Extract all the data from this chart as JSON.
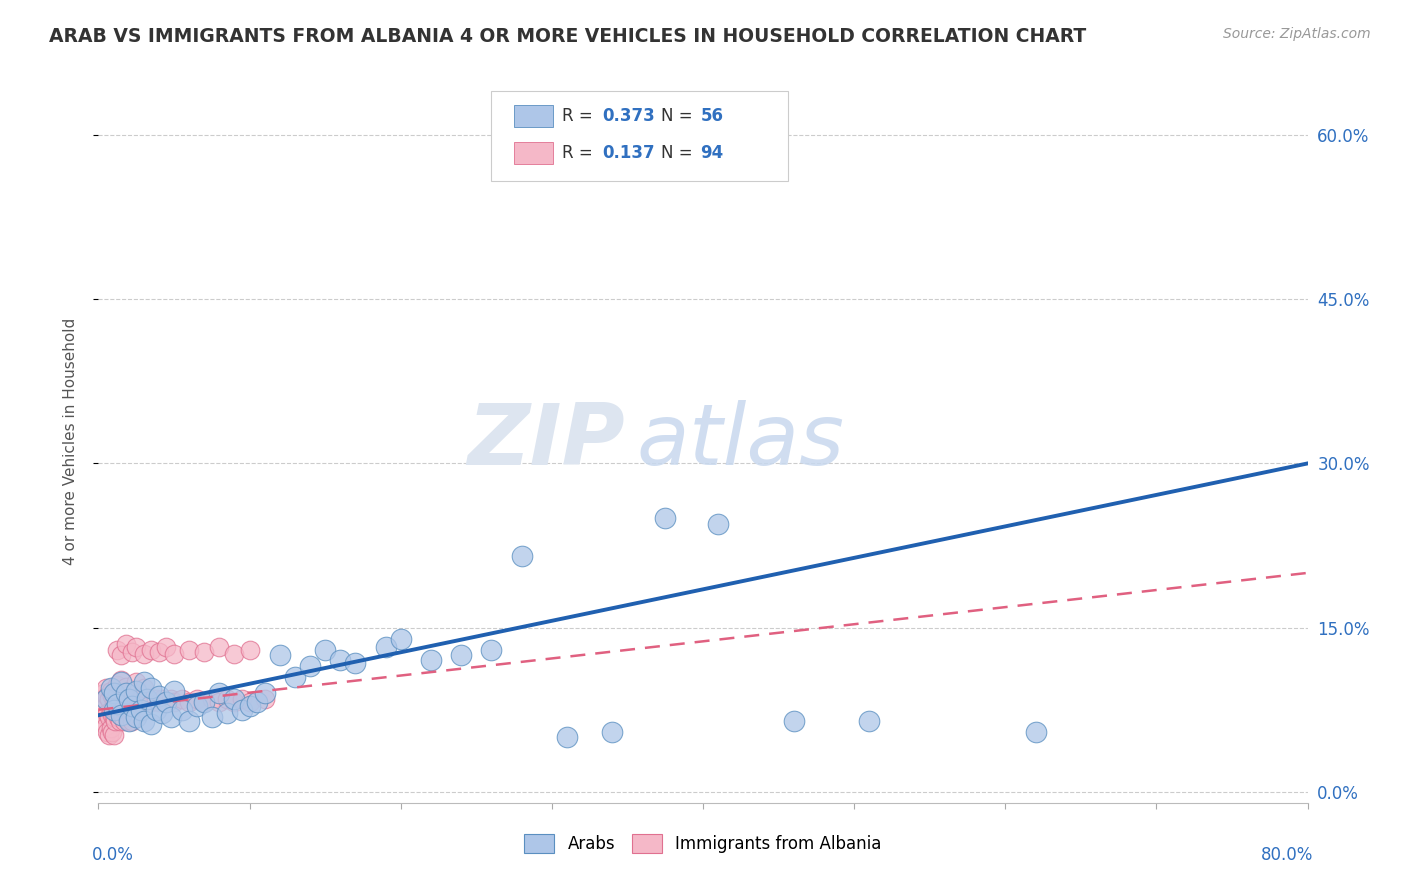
{
  "title": "ARAB VS IMMIGRANTS FROM ALBANIA 4 OR MORE VEHICLES IN HOUSEHOLD CORRELATION CHART",
  "source": "Source: ZipAtlas.com",
  "ylabel": "4 or more Vehicles in Household",
  "yticks": [
    "0.0%",
    "15.0%",
    "30.0%",
    "45.0%",
    "60.0%"
  ],
  "ytick_vals": [
    0.0,
    0.15,
    0.3,
    0.45,
    0.6
  ],
  "xlim": [
    0.0,
    0.8
  ],
  "ylim": [
    -0.01,
    0.65
  ],
  "legend_r1": "0.373",
  "legend_n1": "56",
  "legend_r2": "0.137",
  "legend_n2": "94",
  "arab_color": "#aec6e8",
  "albania_color": "#f5b8c8",
  "arab_edge_color": "#5a8fc0",
  "albania_edge_color": "#e07090",
  "arab_line_color": "#2060b0",
  "albania_line_color": "#e06080",
  "text_color_blue": "#3070c0",
  "watermark_zip": "ZIP",
  "watermark_atlas": "atlas",
  "arab_scatter_x": [
    0.005,
    0.008,
    0.01,
    0.01,
    0.012,
    0.015,
    0.015,
    0.018,
    0.02,
    0.02,
    0.022,
    0.025,
    0.025,
    0.028,
    0.03,
    0.03,
    0.032,
    0.035,
    0.035,
    0.038,
    0.04,
    0.042,
    0.045,
    0.048,
    0.05,
    0.055,
    0.06,
    0.065,
    0.07,
    0.075,
    0.08,
    0.085,
    0.09,
    0.095,
    0.1,
    0.105,
    0.11,
    0.12,
    0.13,
    0.14,
    0.15,
    0.16,
    0.17,
    0.19,
    0.2,
    0.22,
    0.24,
    0.26,
    0.28,
    0.31,
    0.34,
    0.375,
    0.41,
    0.46,
    0.51,
    0.62
  ],
  "arab_scatter_y": [
    0.085,
    0.095,
    0.09,
    0.075,
    0.08,
    0.1,
    0.07,
    0.09,
    0.085,
    0.065,
    0.078,
    0.092,
    0.068,
    0.075,
    0.1,
    0.065,
    0.085,
    0.095,
    0.062,
    0.075,
    0.088,
    0.072,
    0.082,
    0.068,
    0.092,
    0.075,
    0.065,
    0.078,
    0.082,
    0.068,
    0.09,
    0.072,
    0.085,
    0.075,
    0.078,
    0.082,
    0.09,
    0.125,
    0.105,
    0.115,
    0.13,
    0.12,
    0.118,
    0.132,
    0.14,
    0.12,
    0.125,
    0.13,
    0.215,
    0.05,
    0.055,
    0.25,
    0.245,
    0.065,
    0.065,
    0.055
  ],
  "albania_scatter_x": [
    0.002,
    0.003,
    0.003,
    0.004,
    0.004,
    0.005,
    0.005,
    0.005,
    0.006,
    0.006,
    0.006,
    0.007,
    0.007,
    0.007,
    0.008,
    0.008,
    0.008,
    0.009,
    0.009,
    0.009,
    0.01,
    0.01,
    0.01,
    0.011,
    0.011,
    0.012,
    0.012,
    0.013,
    0.013,
    0.014,
    0.014,
    0.015,
    0.015,
    0.016,
    0.016,
    0.017,
    0.017,
    0.018,
    0.018,
    0.019,
    0.019,
    0.02,
    0.02,
    0.021,
    0.021,
    0.022,
    0.022,
    0.023,
    0.024,
    0.025,
    0.026,
    0.027,
    0.028,
    0.029,
    0.03,
    0.032,
    0.035,
    0.038,
    0.04,
    0.042,
    0.045,
    0.048,
    0.05,
    0.055,
    0.06,
    0.065,
    0.07,
    0.075,
    0.08,
    0.085,
    0.09,
    0.095,
    0.1,
    0.11,
    0.012,
    0.015,
    0.018,
    0.022,
    0.025,
    0.03,
    0.035,
    0.04,
    0.045,
    0.05,
    0.06,
    0.07,
    0.08,
    0.09,
    0.1,
    0.012,
    0.015,
    0.018,
    0.025,
    0.03
  ],
  "albania_scatter_y": [
    0.075,
    0.082,
    0.065,
    0.09,
    0.07,
    0.095,
    0.078,
    0.06,
    0.088,
    0.072,
    0.055,
    0.085,
    0.068,
    0.052,
    0.092,
    0.075,
    0.058,
    0.088,
    0.07,
    0.055,
    0.085,
    0.068,
    0.052,
    0.082,
    0.065,
    0.088,
    0.072,
    0.085,
    0.068,
    0.082,
    0.065,
    0.088,
    0.072,
    0.085,
    0.068,
    0.082,
    0.065,
    0.088,
    0.072,
    0.085,
    0.068,
    0.082,
    0.065,
    0.088,
    0.072,
    0.082,
    0.065,
    0.088,
    0.082,
    0.085,
    0.082,
    0.085,
    0.082,
    0.085,
    0.082,
    0.085,
    0.082,
    0.085,
    0.082,
    0.085,
    0.082,
    0.085,
    0.082,
    0.085,
    0.082,
    0.085,
    0.082,
    0.085,
    0.082,
    0.085,
    0.082,
    0.085,
    0.082,
    0.085,
    0.13,
    0.125,
    0.135,
    0.128,
    0.132,
    0.126,
    0.13,
    0.128,
    0.132,
    0.126,
    0.13,
    0.128,
    0.132,
    0.126,
    0.13,
    0.098,
    0.102,
    0.096,
    0.1,
    0.095
  ]
}
